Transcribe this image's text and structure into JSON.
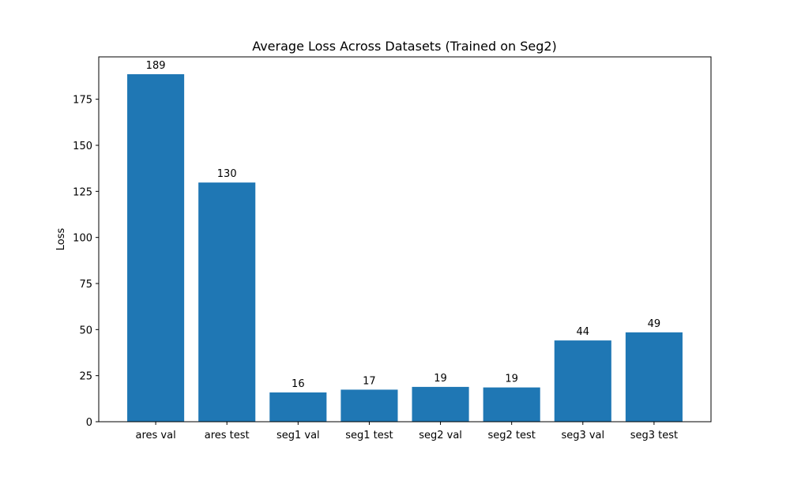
{
  "chart_data": {
    "type": "bar",
    "title": "Average Loss Across Datasets (Trained on Seg2)",
    "xlabel": "",
    "ylabel": "Loss",
    "categories": [
      "ares val",
      "ares test",
      "seg1 val",
      "seg1 test",
      "seg2 val",
      "seg2 test",
      "seg3 val",
      "seg3 test"
    ],
    "values": [
      188.6,
      129.8,
      15.9,
      17.4,
      18.9,
      18.6,
      44.1,
      48.5
    ],
    "data_labels": [
      "189",
      "130",
      "16",
      "17",
      "19",
      "19",
      "44",
      "49"
    ],
    "ylim": [
      0,
      198
    ],
    "yticks": [
      0,
      25,
      50,
      75,
      100,
      125,
      150,
      175
    ],
    "grid": false,
    "bar_color": "#1f77b4"
  }
}
